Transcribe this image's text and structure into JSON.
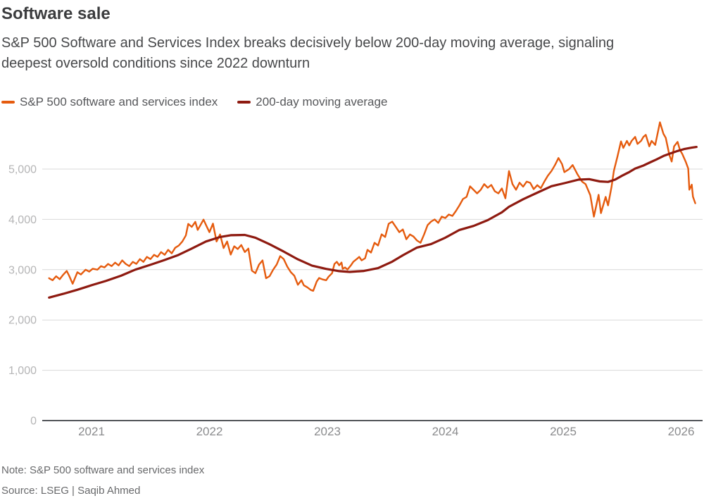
{
  "header": {
    "title": "Software sale",
    "subtitle": "S&P 500 Software and Services Index breaks decisively below 200-day moving average, signaling deepest oversold conditions since 2022 downturn"
  },
  "legend": [
    {
      "label": "S&P 500 software and services index",
      "color": "#e55b0e"
    },
    {
      "label": "200-day moving average",
      "color": "#8e1a10"
    }
  ],
  "footer": {
    "note": "Note: S&P 500 software and services index",
    "source": "Source: LSEG | Saqib Ahmed"
  },
  "chart_data": {
    "type": "line",
    "title": "Software sale",
    "xlabel": "",
    "ylabel": "",
    "grid": "horizontal",
    "legend_position": "top",
    "grid_color": "#d9d9d9",
    "axis_color": "#53565a",
    "x_axis": {
      "range": [
        2020.582,
        2026.182
      ],
      "ticks": [
        2021,
        2022,
        2023,
        2024,
        2025,
        2026
      ],
      "tick_labels": [
        "2021",
        "2022",
        "2023",
        "2024",
        "2025",
        "2026"
      ],
      "label_color": "#8a8b8d"
    },
    "y_axis": {
      "range": [
        0,
        6120
      ],
      "ticks": [
        0,
        1000,
        2000,
        3000,
        4000,
        5000
      ],
      "tick_labels": [
        "0",
        "1,000",
        "2,000",
        "3,000",
        "4,000",
        "5,000"
      ],
      "label_color": "#b5b5b6"
    },
    "series": [
      {
        "name": "S&P 500 software and services index",
        "color": "#e55b0e",
        "stroke_width": 2.4,
        "points": [
          [
            2020.64,
            2830
          ],
          [
            2020.67,
            2790
          ],
          [
            2020.7,
            2870
          ],
          [
            2020.73,
            2810
          ],
          [
            2020.76,
            2900
          ],
          [
            2020.79,
            2975
          ],
          [
            2020.81,
            2880
          ],
          [
            2020.84,
            2720
          ],
          [
            2020.88,
            2950
          ],
          [
            2020.91,
            2905
          ],
          [
            2020.95,
            3000
          ],
          [
            2020.98,
            2960
          ],
          [
            2021.01,
            3020
          ],
          [
            2021.05,
            3000
          ],
          [
            2021.08,
            3070
          ],
          [
            2021.11,
            3045
          ],
          [
            2021.14,
            3115
          ],
          [
            2021.17,
            3070
          ],
          [
            2021.2,
            3140
          ],
          [
            2021.23,
            3085
          ],
          [
            2021.26,
            3185
          ],
          [
            2021.29,
            3115
          ],
          [
            2021.32,
            3070
          ],
          [
            2021.35,
            3155
          ],
          [
            2021.38,
            3115
          ],
          [
            2021.41,
            3210
          ],
          [
            2021.44,
            3155
          ],
          [
            2021.47,
            3255
          ],
          [
            2021.5,
            3210
          ],
          [
            2021.53,
            3295
          ],
          [
            2021.56,
            3255
          ],
          [
            2021.59,
            3350
          ],
          [
            2021.62,
            3295
          ],
          [
            2021.65,
            3395
          ],
          [
            2021.68,
            3325
          ],
          [
            2021.71,
            3435
          ],
          [
            2021.74,
            3480
          ],
          [
            2021.77,
            3560
          ],
          [
            2021.8,
            3680
          ],
          [
            2021.82,
            3910
          ],
          [
            2021.85,
            3850
          ],
          [
            2021.88,
            3950
          ],
          [
            2021.9,
            3790
          ],
          [
            2021.92,
            3870
          ],
          [
            2021.95,
            3995
          ],
          [
            2021.98,
            3840
          ],
          [
            2022.0,
            3745
          ],
          [
            2022.03,
            3915
          ],
          [
            2022.06,
            3560
          ],
          [
            2022.09,
            3700
          ],
          [
            2022.12,
            3430
          ],
          [
            2022.15,
            3560
          ],
          [
            2022.18,
            3300
          ],
          [
            2022.21,
            3465
          ],
          [
            2022.24,
            3410
          ],
          [
            2022.27,
            3490
          ],
          [
            2022.3,
            3350
          ],
          [
            2022.33,
            3420
          ],
          [
            2022.36,
            2980
          ],
          [
            2022.39,
            2930
          ],
          [
            2022.42,
            3100
          ],
          [
            2022.45,
            3185
          ],
          [
            2022.48,
            2830
          ],
          [
            2022.51,
            2870
          ],
          [
            2022.54,
            3000
          ],
          [
            2022.57,
            3100
          ],
          [
            2022.6,
            3270
          ],
          [
            2022.63,
            3210
          ],
          [
            2022.66,
            3060
          ],
          [
            2022.69,
            2950
          ],
          [
            2022.72,
            2880
          ],
          [
            2022.75,
            2700
          ],
          [
            2022.78,
            2790
          ],
          [
            2022.8,
            2690
          ],
          [
            2022.83,
            2650
          ],
          [
            2022.86,
            2595
          ],
          [
            2022.88,
            2580
          ],
          [
            2022.91,
            2765
          ],
          [
            2022.93,
            2835
          ],
          [
            2022.96,
            2805
          ],
          [
            2022.99,
            2790
          ],
          [
            2023.01,
            2860
          ],
          [
            2023.04,
            2930
          ],
          [
            2023.06,
            3115
          ],
          [
            2023.08,
            3156
          ],
          [
            2023.1,
            3086
          ],
          [
            2023.12,
            3142
          ],
          [
            2023.13,
            3016
          ],
          [
            2023.15,
            3044
          ],
          [
            2023.17,
            3002
          ],
          [
            2023.2,
            3086
          ],
          [
            2023.22,
            3156
          ],
          [
            2023.25,
            3212
          ],
          [
            2023.27,
            3254
          ],
          [
            2023.29,
            3184
          ],
          [
            2023.32,
            3226
          ],
          [
            2023.34,
            3395
          ],
          [
            2023.37,
            3340
          ],
          [
            2023.4,
            3535
          ],
          [
            2023.43,
            3480
          ],
          [
            2023.46,
            3703
          ],
          [
            2023.49,
            3650
          ],
          [
            2023.52,
            3913
          ],
          [
            2023.55,
            3955
          ],
          [
            2023.58,
            3850
          ],
          [
            2023.61,
            3745
          ],
          [
            2023.64,
            3800
          ],
          [
            2023.67,
            3605
          ],
          [
            2023.7,
            3700
          ],
          [
            2023.73,
            3660
          ],
          [
            2023.76,
            3580
          ],
          [
            2023.79,
            3535
          ],
          [
            2023.82,
            3700
          ],
          [
            2023.85,
            3886
          ],
          [
            2023.88,
            3956
          ],
          [
            2023.91,
            3998
          ],
          [
            2023.94,
            3930
          ],
          [
            2023.97,
            4054
          ],
          [
            2024.0,
            4026
          ],
          [
            2024.03,
            4096
          ],
          [
            2024.06,
            4068
          ],
          [
            2024.09,
            4166
          ],
          [
            2024.12,
            4279
          ],
          [
            2024.15,
            4405
          ],
          [
            2024.18,
            4447
          ],
          [
            2024.21,
            4657
          ],
          [
            2024.24,
            4587
          ],
          [
            2024.27,
            4517
          ],
          [
            2024.3,
            4587
          ],
          [
            2024.33,
            4700
          ],
          [
            2024.36,
            4629
          ],
          [
            2024.39,
            4685
          ],
          [
            2024.42,
            4559
          ],
          [
            2024.45,
            4517
          ],
          [
            2024.48,
            4615
          ],
          [
            2024.51,
            4419
          ],
          [
            2024.54,
            4960
          ],
          [
            2024.57,
            4700
          ],
          [
            2024.6,
            4590
          ],
          [
            2024.63,
            4730
          ],
          [
            2024.66,
            4650
          ],
          [
            2024.69,
            4750
          ],
          [
            2024.72,
            4727
          ],
          [
            2024.75,
            4600
          ],
          [
            2024.78,
            4680
          ],
          [
            2024.81,
            4620
          ],
          [
            2024.84,
            4750
          ],
          [
            2024.87,
            4868
          ],
          [
            2024.9,
            4960
          ],
          [
            2024.93,
            5080
          ],
          [
            2024.96,
            5219
          ],
          [
            2024.99,
            5100
          ],
          [
            2025.01,
            4938
          ],
          [
            2025.05,
            5000
          ],
          [
            2025.08,
            5079
          ],
          [
            2025.12,
            4900
          ],
          [
            2025.16,
            4750
          ],
          [
            2025.19,
            4700
          ],
          [
            2025.23,
            4480
          ],
          [
            2025.26,
            4054
          ],
          [
            2025.3,
            4489
          ],
          [
            2025.32,
            4124
          ],
          [
            2025.36,
            4447
          ],
          [
            2025.38,
            4279
          ],
          [
            2025.41,
            4650
          ],
          [
            2025.43,
            4966
          ],
          [
            2025.46,
            5250
          ],
          [
            2025.49,
            5550
          ],
          [
            2025.51,
            5420
          ],
          [
            2025.54,
            5560
          ],
          [
            2025.56,
            5470
          ],
          [
            2025.58,
            5560
          ],
          [
            2025.61,
            5640
          ],
          [
            2025.63,
            5500
          ],
          [
            2025.66,
            5560
          ],
          [
            2025.68,
            5640
          ],
          [
            2025.7,
            5680
          ],
          [
            2025.73,
            5450
          ],
          [
            2025.75,
            5560
          ],
          [
            2025.78,
            5480
          ],
          [
            2025.8,
            5700
          ],
          [
            2025.82,
            5930
          ],
          [
            2025.85,
            5700
          ],
          [
            2025.87,
            5620
          ],
          [
            2025.9,
            5280
          ],
          [
            2025.92,
            5150
          ],
          [
            2025.94,
            5450
          ],
          [
            2025.97,
            5540
          ],
          [
            2025.99,
            5380
          ],
          [
            2026.01,
            5300
          ],
          [
            2026.04,
            5140
          ],
          [
            2026.06,
            5010
          ],
          [
            2026.07,
            4590
          ],
          [
            2026.09,
            4690
          ],
          [
            2026.1,
            4450
          ],
          [
            2026.12,
            4320
          ]
        ]
      },
      {
        "name": "200-day moving average",
        "color": "#8e1a10",
        "stroke_width": 3.2,
        "points": [
          [
            2020.64,
            2445
          ],
          [
            2020.76,
            2520
          ],
          [
            2020.88,
            2600
          ],
          [
            2021.0,
            2690
          ],
          [
            2021.12,
            2775
          ],
          [
            2021.25,
            2880
          ],
          [
            2021.37,
            3000
          ],
          [
            2021.49,
            3090
          ],
          [
            2021.61,
            3185
          ],
          [
            2021.73,
            3285
          ],
          [
            2021.85,
            3420
          ],
          [
            2021.97,
            3560
          ],
          [
            2022.09,
            3650
          ],
          [
            2022.18,
            3685
          ],
          [
            2022.3,
            3690
          ],
          [
            2022.39,
            3635
          ],
          [
            2022.51,
            3505
          ],
          [
            2022.63,
            3360
          ],
          [
            2022.75,
            3205
          ],
          [
            2022.87,
            3080
          ],
          [
            2022.99,
            3015
          ],
          [
            2023.1,
            2970
          ],
          [
            2023.19,
            2955
          ],
          [
            2023.31,
            2975
          ],
          [
            2023.43,
            3030
          ],
          [
            2023.55,
            3160
          ],
          [
            2023.64,
            3285
          ],
          [
            2023.76,
            3440
          ],
          [
            2023.88,
            3510
          ],
          [
            2024.0,
            3635
          ],
          [
            2024.12,
            3790
          ],
          [
            2024.24,
            3870
          ],
          [
            2024.36,
            3985
          ],
          [
            2024.48,
            4140
          ],
          [
            2024.54,
            4250
          ],
          [
            2024.66,
            4400
          ],
          [
            2024.78,
            4530
          ],
          [
            2024.9,
            4660
          ],
          [
            2025.01,
            4720
          ],
          [
            2025.13,
            4790
          ],
          [
            2025.22,
            4800
          ],
          [
            2025.31,
            4755
          ],
          [
            2025.38,
            4745
          ],
          [
            2025.44,
            4790
          ],
          [
            2025.5,
            4870
          ],
          [
            2025.56,
            4940
          ],
          [
            2025.61,
            5010
          ],
          [
            2025.68,
            5070
          ],
          [
            2025.73,
            5125
          ],
          [
            2025.79,
            5190
          ],
          [
            2025.85,
            5260
          ],
          [
            2025.91,
            5310
          ],
          [
            2025.97,
            5360
          ],
          [
            2026.03,
            5400
          ],
          [
            2026.09,
            5425
          ],
          [
            2026.13,
            5440
          ]
        ]
      }
    ]
  }
}
